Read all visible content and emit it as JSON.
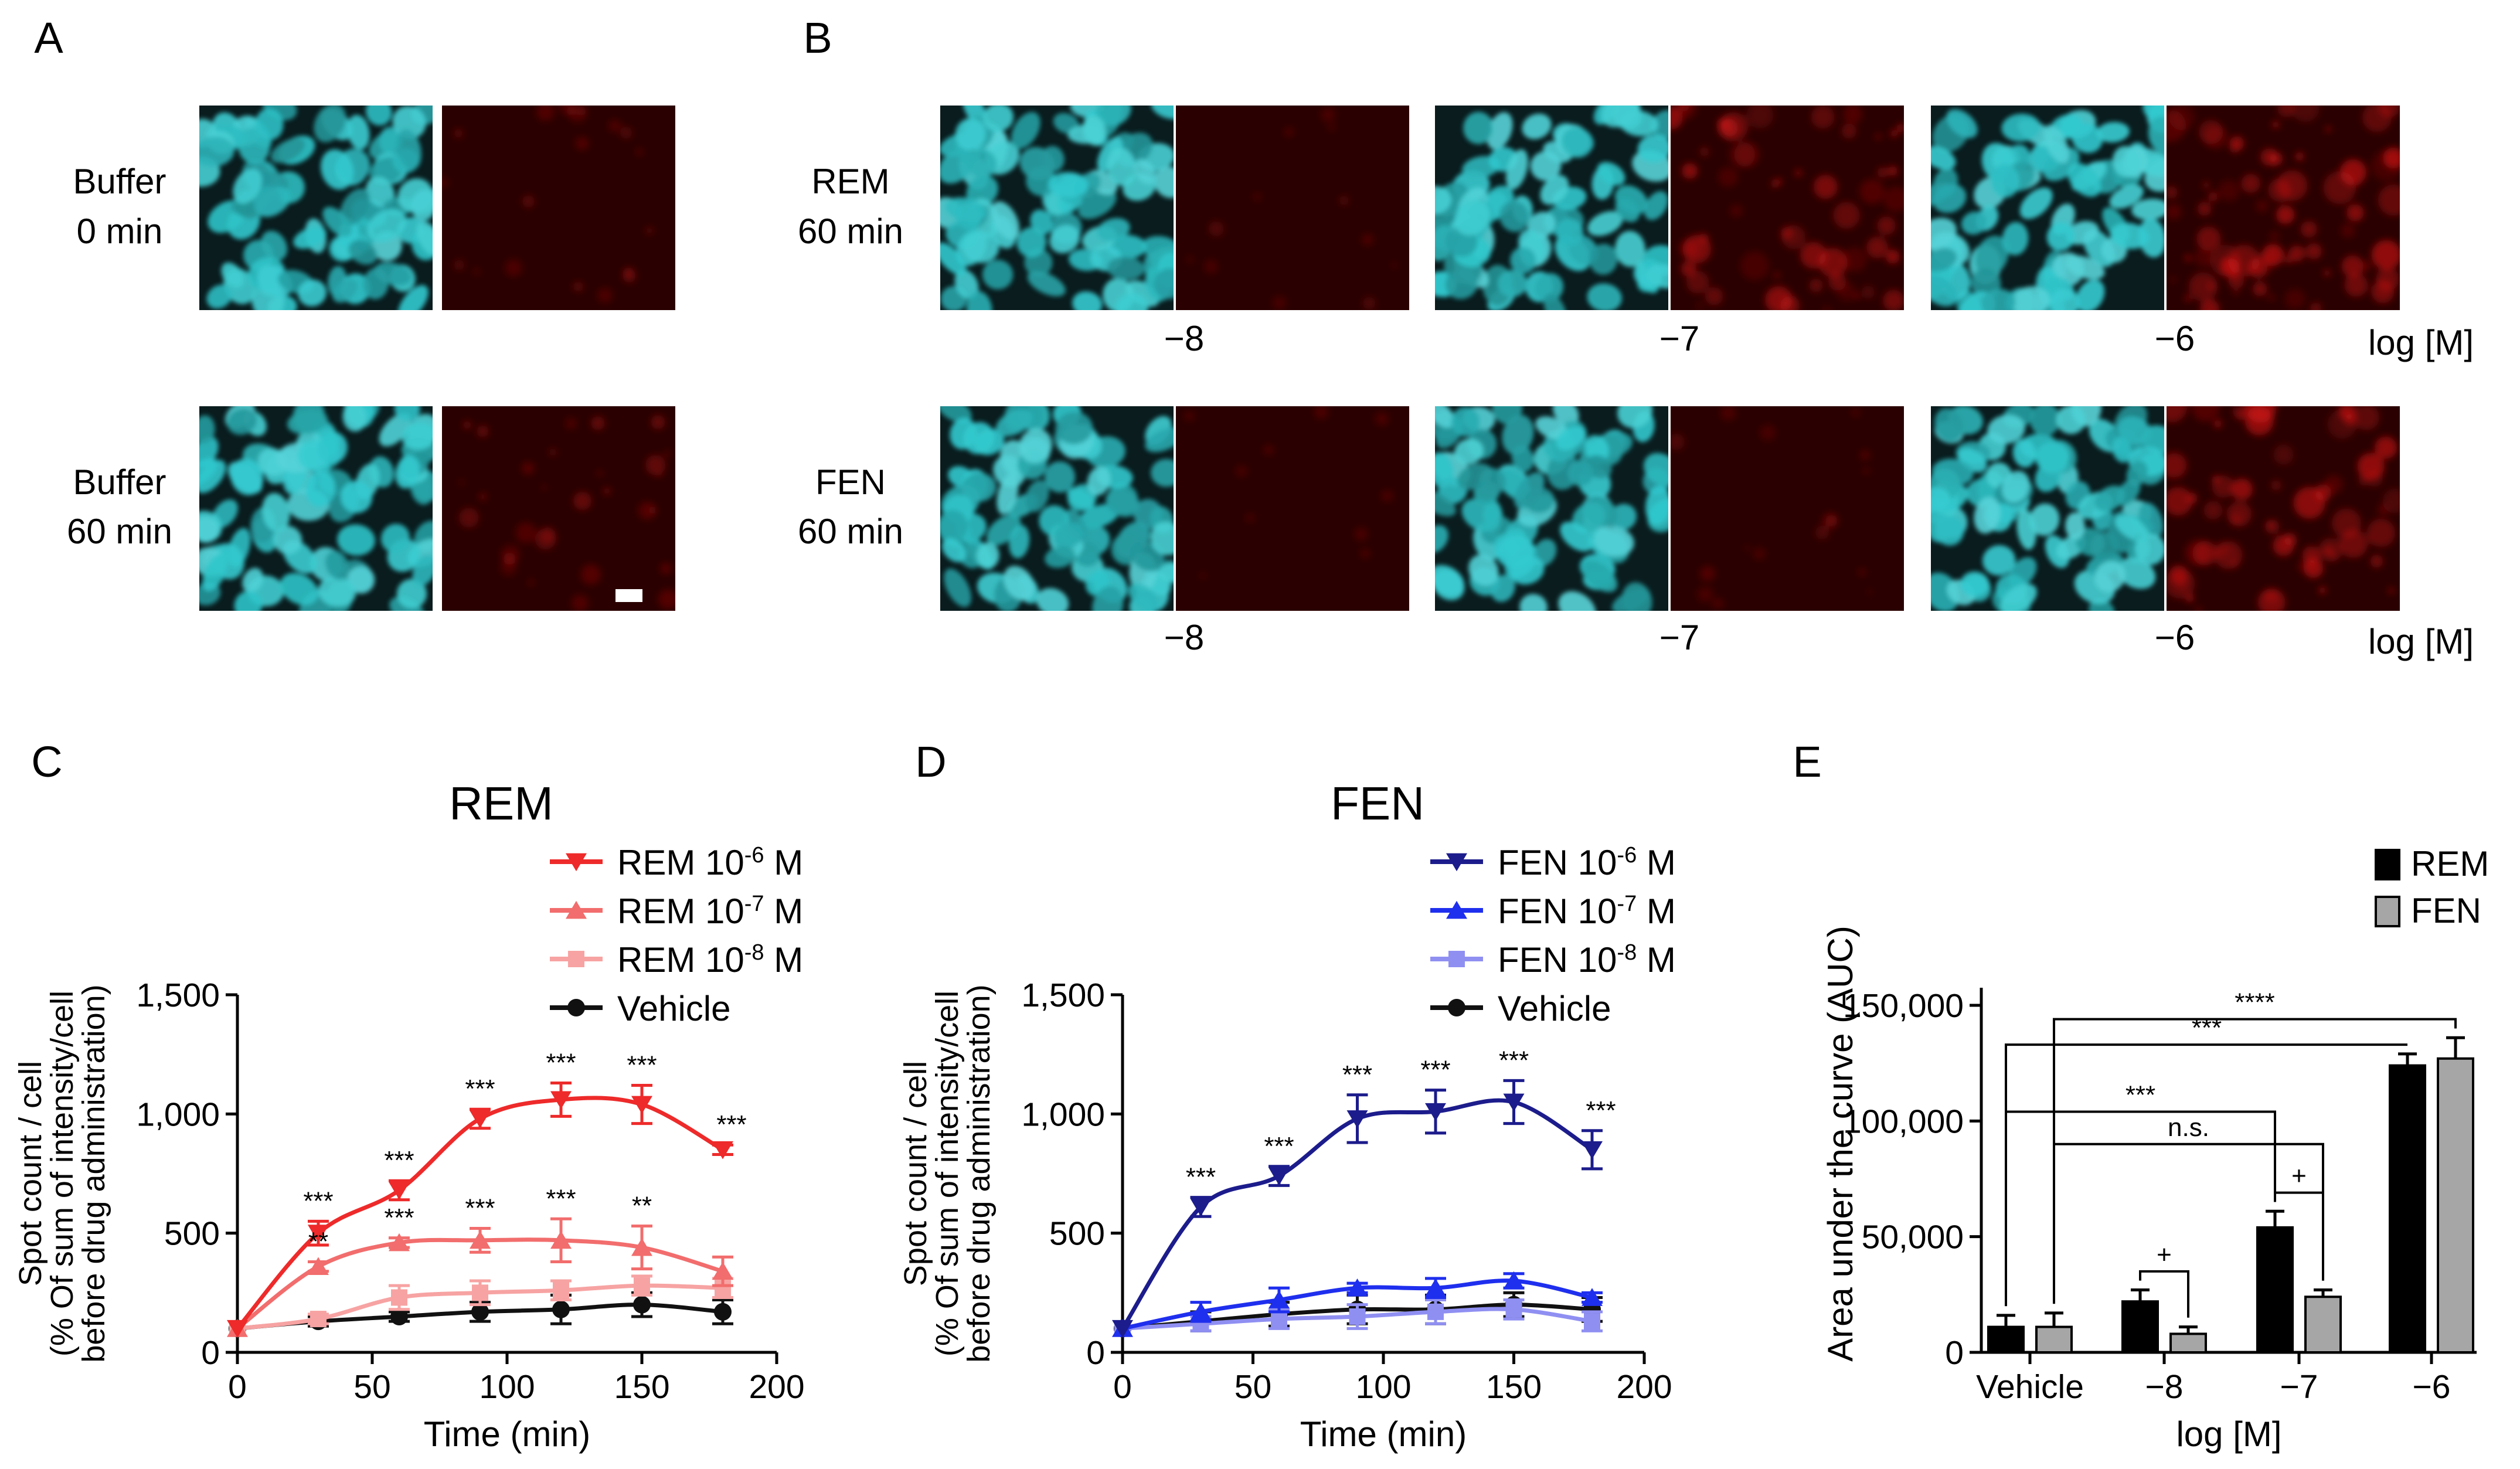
{
  "panels": {
    "A": "A",
    "B": "B",
    "C": "C",
    "D": "D",
    "E": "E"
  },
  "micro": {
    "a_labels": [
      [
        "Buffer",
        "0 min"
      ],
      [
        "Buffer",
        "60 min"
      ]
    ],
    "b_labels": [
      [
        "REM",
        "60 min"
      ],
      [
        "FEN",
        "60 min"
      ]
    ],
    "b_conc": [
      "−8",
      "−7",
      "−6"
    ],
    "b_unit": "log [M]",
    "dapi_color": "#2fb5b8",
    "signal_color": "#d81c1c"
  },
  "chart_data": [
    {
      "type": "line",
      "panel": "C",
      "title": "REM",
      "xlabel": "Time (min)",
      "ylabel": [
        "Spot count / cell",
        "(% Of sum of intensity/cell",
        "before drug administration)"
      ],
      "xlim": [
        0,
        200
      ],
      "ylim": [
        0,
        1500
      ],
      "xticks": [
        0,
        50,
        100,
        150,
        200
      ],
      "xtick_labels": [
        "0",
        "50",
        "100",
        "150",
        "200"
      ],
      "yticks": [
        0,
        500,
        1000,
        1500
      ],
      "ytick_labels": [
        "0",
        "500",
        "1,000",
        "1,500"
      ],
      "x": [
        0,
        30,
        60,
        90,
        120,
        150,
        180
      ],
      "series": [
        {
          "name": "REM 10",
          "sup": "-6",
          "unit": " M",
          "color": "#ee2a2a",
          "marker": "tri-down",
          "values": [
            100,
            500,
            680,
            980,
            1060,
            1040,
            850
          ],
          "errors": [
            0,
            50,
            40,
            40,
            70,
            80,
            20
          ],
          "sig": [
            "",
            "***",
            "***",
            "***",
            "***",
            "***",
            "***"
          ]
        },
        {
          "name": "REM 10",
          "sup": "-7",
          "unit": " M",
          "color": "#f26d6d",
          "marker": "tri-up",
          "values": [
            100,
            360,
            460,
            470,
            470,
            440,
            340
          ],
          "errors": [
            0,
            20,
            20,
            50,
            90,
            90,
            60
          ],
          "sig": [
            "",
            "**",
            "***",
            "***",
            "***",
            "**",
            ""
          ]
        },
        {
          "name": "REM 10",
          "sup": "-8",
          "unit": " M",
          "color": "#f7a3a3",
          "marker": "square",
          "values": [
            100,
            140,
            230,
            250,
            260,
            280,
            270
          ],
          "errors": [
            0,
            20,
            50,
            50,
            40,
            40,
            40
          ],
          "sig": [
            "",
            "",
            "",
            "",
            "",
            "",
            ""
          ]
        },
        {
          "name": "Vehicle",
          "sup": "",
          "unit": "",
          "color": "#111111",
          "marker": "circle",
          "values": [
            100,
            130,
            150,
            170,
            180,
            200,
            170
          ],
          "errors": [
            0,
            20,
            20,
            40,
            60,
            50,
            50
          ],
          "sig": [
            "",
            "",
            "",
            "",
            "",
            "",
            ""
          ]
        }
      ]
    },
    {
      "type": "line",
      "panel": "D",
      "title": "FEN",
      "xlabel": "Time (min)",
      "ylabel": [
        "Spot count / cell",
        "(% Of sum of intensity/cell",
        "before drug administration)"
      ],
      "xlim": [
        0,
        200
      ],
      "ylim": [
        0,
        1500
      ],
      "xticks": [
        0,
        50,
        100,
        150,
        200
      ],
      "xtick_labels": [
        "0",
        "50",
        "100",
        "150",
        "200"
      ],
      "yticks": [
        0,
        500,
        1000,
        1500
      ],
      "ytick_labels": [
        "0",
        "500",
        "1,000",
        "1,500"
      ],
      "x": [
        0,
        30,
        60,
        90,
        120,
        150,
        180
      ],
      "series": [
        {
          "name": "FEN 10",
          "sup": "-6",
          "unit": " M",
          "color": "#1c1c8c",
          "marker": "tri-down",
          "values": [
            100,
            610,
            740,
            980,
            1010,
            1050,
            850
          ],
          "errors": [
            0,
            40,
            40,
            100,
            90,
            90,
            80
          ],
          "sig": [
            "",
            "***",
            "***",
            "***",
            "***",
            "***",
            "***"
          ]
        },
        {
          "name": "FEN 10",
          "sup": "-7",
          "unit": " M",
          "color": "#1f2fee",
          "marker": "tri-up",
          "values": [
            100,
            170,
            220,
            270,
            270,
            300,
            230
          ],
          "errors": [
            0,
            40,
            50,
            20,
            40,
            30,
            20
          ],
          "sig": [
            "",
            "",
            "",
            "",
            "",
            "",
            ""
          ]
        },
        {
          "name": "FEN 10",
          "sup": "-8",
          "unit": " M",
          "color": "#8f8ff2",
          "marker": "square",
          "values": [
            100,
            120,
            140,
            150,
            170,
            180,
            130
          ],
          "errors": [
            0,
            30,
            40,
            50,
            50,
            40,
            40
          ],
          "sig": [
            "",
            "",
            "",
            "",
            "",
            "",
            ""
          ]
        },
        {
          "name": "Vehicle",
          "sup": "",
          "unit": "",
          "color": "#111111",
          "marker": "circle",
          "values": [
            100,
            130,
            160,
            180,
            180,
            200,
            180
          ],
          "errors": [
            0,
            40,
            50,
            60,
            60,
            50,
            50
          ],
          "sig": [
            "",
            "",
            "",
            "",
            "",
            "",
            ""
          ]
        }
      ]
    },
    {
      "type": "bar",
      "panel": "E",
      "xlabel": "log [M]",
      "ylabel": "Area under the curve (AUC)",
      "ylim": [
        0,
        150000
      ],
      "yticks": [
        0,
        50000,
        100000,
        150000
      ],
      "ytick_labels": [
        "0",
        "50,000",
        "100,000",
        "150,000"
      ],
      "categories": [
        "Vehicle",
        "−8",
        "−7",
        "−6"
      ],
      "series": [
        {
          "name": "REM",
          "color": "#000000",
          "values": [
            11000,
            22000,
            54000,
            124000
          ],
          "errors": [
            5000,
            5000,
            7000,
            5000
          ]
        },
        {
          "name": "FEN",
          "color": "#a6a6a6",
          "values": [
            11000,
            8000,
            24000,
            127000
          ],
          "errors": [
            6000,
            3000,
            3000,
            9000
          ]
        }
      ],
      "comparisons": [
        {
          "label": "****",
          "from": [
            0,
            1
          ],
          "to": [
            3,
            1
          ]
        },
        {
          "label": "***",
          "from": [
            0,
            0
          ],
          "to": [
            3,
            0
          ]
        },
        {
          "label": "***",
          "from": [
            0,
            0
          ],
          "to": [
            2,
            0
          ]
        },
        {
          "label": "n.s.",
          "from": [
            0,
            1
          ],
          "to": [
            2,
            1
          ]
        },
        {
          "label": "+",
          "from": [
            2,
            0
          ],
          "to": [
            2,
            1
          ]
        },
        {
          "label": "+",
          "from": [
            1,
            0
          ],
          "to": [
            1,
            1
          ]
        }
      ]
    }
  ]
}
